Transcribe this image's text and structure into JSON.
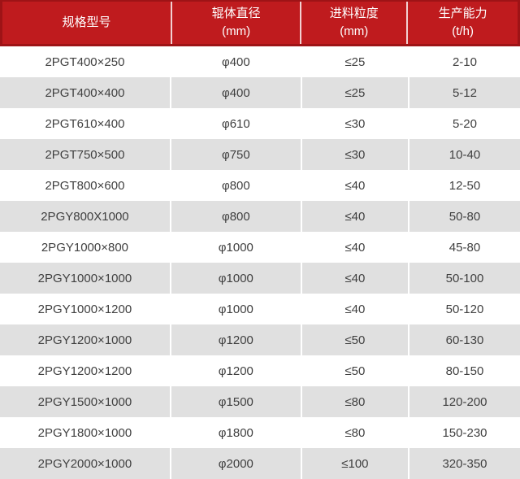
{
  "colors": {
    "header_bg": "#bf1b1e",
    "header_border": "#9e1316",
    "header_text": "#ffffff",
    "row_bg": "#ffffff",
    "row_alt_bg": "#e0e0e0",
    "body_text": "#404040",
    "divider": "#ffffff"
  },
  "table": {
    "headers": [
      {
        "line1": "规格型号",
        "line2": ""
      },
      {
        "line1": "辊体直径",
        "line2": "(mm)"
      },
      {
        "line1": "进料粒度",
        "line2": "(mm)"
      },
      {
        "line1": "生产能力",
        "line2": "(t/h)"
      }
    ],
    "rows": [
      [
        "2PGT400×250",
        "φ400",
        "≤25",
        "2-10"
      ],
      [
        "2PGT400×400",
        "φ400",
        "≤25",
        "5-12"
      ],
      [
        "2PGT610×400",
        "φ610",
        "≤30",
        "5-20"
      ],
      [
        "2PGT750×500",
        "φ750",
        "≤30",
        "10-40"
      ],
      [
        "2PGT800×600",
        "φ800",
        "≤40",
        "12-50"
      ],
      [
        "2PGY800X1000",
        "φ800",
        "≤40",
        "50-80"
      ],
      [
        "2PGY1000×800",
        "φ1000",
        "≤40",
        "45-80"
      ],
      [
        "2PGY1000×1000",
        "φ1000",
        "≤40",
        "50-100"
      ],
      [
        "2PGY1000×1200",
        "φ1000",
        "≤40",
        "50-120"
      ],
      [
        "2PGY1200×1000",
        "φ1200",
        "≤50",
        "60-130"
      ],
      [
        "2PGY1200×1200",
        "φ1200",
        "≤50",
        "80-150"
      ],
      [
        "2PGY1500×1000",
        "φ1500",
        "≤80",
        "120-200"
      ],
      [
        "2PGY1800×1000",
        "φ1800",
        "≤80",
        "150-230"
      ],
      [
        "2PGY2000×1000",
        "φ2000",
        "≤100",
        "320-350"
      ]
    ]
  },
  "chart_data": {
    "type": "table",
    "title": "",
    "columns": [
      "规格型号",
      "辊体直径 (mm)",
      "进料粒度 (mm)",
      "生产能力 (t/h)"
    ],
    "rows": [
      [
        "2PGT400×250",
        "φ400",
        "≤25",
        "2-10"
      ],
      [
        "2PGT400×400",
        "φ400",
        "≤25",
        "5-12"
      ],
      [
        "2PGT610×400",
        "φ610",
        "≤30",
        "5-20"
      ],
      [
        "2PGT750×500",
        "φ750",
        "≤30",
        "10-40"
      ],
      [
        "2PGT800×600",
        "φ800",
        "≤40",
        "12-50"
      ],
      [
        "2PGY800X1000",
        "φ800",
        "≤40",
        "50-80"
      ],
      [
        "2PGY1000×800",
        "φ1000",
        "≤40",
        "45-80"
      ],
      [
        "2PGY1000×1000",
        "φ1000",
        "≤40",
        "50-100"
      ],
      [
        "2PGY1000×1200",
        "φ1000",
        "≤40",
        "50-120"
      ],
      [
        "2PGY1200×1000",
        "φ1200",
        "≤50",
        "60-130"
      ],
      [
        "2PGY1200×1200",
        "φ1200",
        "≤50",
        "80-150"
      ],
      [
        "2PGY1500×1000",
        "φ1500",
        "≤80",
        "120-200"
      ],
      [
        "2PGY1800×1000",
        "φ1800",
        "≤80",
        "150-230"
      ],
      [
        "2PGY2000×1000",
        "φ2000",
        "≤100",
        "320-350"
      ]
    ],
    "layout": {
      "header_style": "red-banner",
      "zebra_striping": true,
      "grid": "white-column-dividers"
    }
  }
}
